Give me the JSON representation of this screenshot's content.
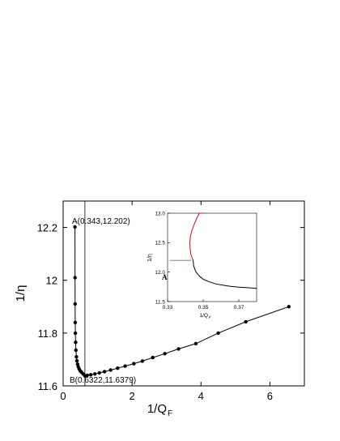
{
  "chart_data": [
    {
      "type": "scatter",
      "title": "",
      "xlabel": "1/Q_F",
      "ylabel": "1/η",
      "xlim": [
        0,
        7
      ],
      "ylim": [
        11.6,
        12.3
      ],
      "x_ticks": [
        0,
        2,
        4,
        6
      ],
      "x_tick_labels": [
        "0",
        "2",
        "4",
        "6"
      ],
      "y_ticks": [
        11.6,
        11.8,
        12.0,
        12.2
      ],
      "y_tick_labels": [
        "11.6",
        "11.8",
        "12",
        "12.2"
      ],
      "grid": false,
      "legend": "none",
      "vertical_line_x": 0.6322,
      "series": [
        {
          "color": "#000000",
          "marker": "filled-circle",
          "line": true,
          "x": [
            0.343,
            0.345,
            0.347,
            0.35,
            0.355,
            0.362,
            0.372,
            0.385,
            0.4,
            0.418,
            0.44,
            0.465,
            0.495,
            0.53,
            0.58,
            0.6322,
            0.7,
            0.8,
            0.92,
            1.05,
            1.2,
            1.38,
            1.58,
            1.8,
            2.05,
            2.3,
            2.6,
            2.95,
            3.35,
            3.85,
            4.5,
            5.3,
            6.55
          ],
          "y": [
            12.202,
            12.01,
            11.91,
            11.84,
            11.8,
            11.765,
            11.735,
            11.71,
            11.695,
            11.682,
            11.672,
            11.664,
            11.657,
            11.652,
            11.645,
            11.6379,
            11.64,
            11.642,
            11.645,
            11.649,
            11.654,
            11.66,
            11.667,
            11.675,
            11.684,
            11.694,
            11.707,
            11.722,
            11.74,
            11.76,
            11.8,
            11.843,
            11.9
          ]
        }
      ],
      "annotations": [
        {
          "text": "A(0.343,12.202)",
          "x": 0.343,
          "y": 12.202
        },
        {
          "text": "B(0.6322,11.6379)",
          "x": 0.6322,
          "y": 11.6379
        }
      ]
    },
    {
      "type": "line",
      "title": "",
      "xlabel": "1/Q_F",
      "ylabel": "1/η",
      "xlim": [
        0.33,
        0.38
      ],
      "ylim": [
        11.5,
        13.0
      ],
      "x_ticks": [
        0.33,
        0.35,
        0.37
      ],
      "x_tick_labels": [
        "0.33",
        "0.35",
        "0.37"
      ],
      "y_ticks": [
        11.5,
        12.0,
        12.5,
        13.0
      ],
      "y_tick_labels": [
        "11.5",
        "12.0",
        "12.5",
        "13.0"
      ],
      "grid": false,
      "legend": "none",
      "series": [
        {
          "color": "#d01010",
          "x": [
            0.3443,
            0.3431,
            0.3427,
            0.3425,
            0.3428,
            0.3436,
            0.3448,
            0.3462,
            0.3478,
            0.3495,
            0.3507
          ],
          "y": [
            12.2,
            12.3,
            12.4,
            12.5,
            12.6,
            12.7,
            12.8,
            12.9,
            13.0,
            13.1,
            13.2
          ]
        },
        {
          "color": "#000000",
          "x": [
            0.3443,
            0.3447,
            0.346,
            0.348,
            0.35,
            0.353,
            0.357,
            0.361,
            0.365,
            0.37,
            0.375,
            0.38
          ],
          "y": [
            12.2,
            12.1,
            12.0,
            11.93,
            11.88,
            11.84,
            11.8,
            11.78,
            11.76,
            11.745,
            11.735,
            11.725
          ]
        }
      ],
      "marker_label": {
        "text": "A",
        "x": 0.3443,
        "y": 12.2
      }
    }
  ]
}
